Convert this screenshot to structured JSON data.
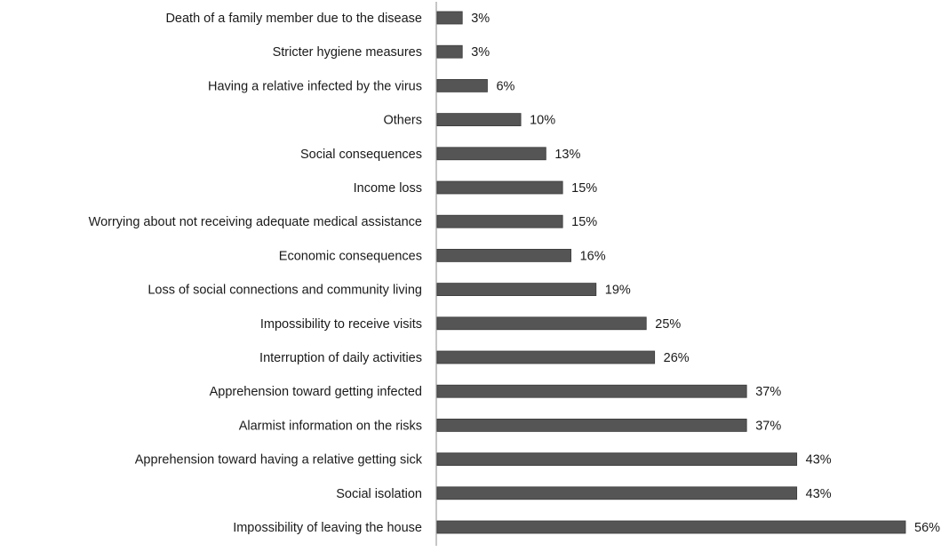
{
  "chart_data": {
    "type": "bar",
    "orientation": "horizontal",
    "title": "",
    "xlabel": "",
    "ylabel": "",
    "xlim": [
      0,
      56
    ],
    "grid": false,
    "legend": "none",
    "value_suffix": "%",
    "categories": [
      "Death of a family member due to the disease",
      "Stricter hygiene measures",
      "Having a relative infected by the virus",
      "Others",
      "Social consequences",
      "Income loss",
      "Worrying about not receiving adequate medical assistance",
      "Economic consequences",
      "Loss of social connections and community living",
      "Impossibility to receive visits",
      "Interruption of daily activities",
      "Apprehension toward getting infected",
      "Alarmist information on the risks",
      "Apprehension toward having a relative getting sick",
      "Social isolation",
      "Impossibility of leaving the house"
    ],
    "values": [
      3,
      3,
      6,
      10,
      13,
      15,
      15,
      16,
      19,
      25,
      26,
      37,
      37,
      43,
      43,
      56
    ],
    "data_labels": [
      "3%",
      "3%",
      "6%",
      "10%",
      "13%",
      "15%",
      "15%",
      "16%",
      "19%",
      "25%",
      "26%",
      "37%",
      "37%",
      "43%",
      "43%",
      "56%"
    ],
    "colors": {
      "bar": "#555555",
      "bar_edge": "#3a3a3a",
      "axis": "#8c8c8c",
      "text": "#1a1a1a"
    }
  }
}
